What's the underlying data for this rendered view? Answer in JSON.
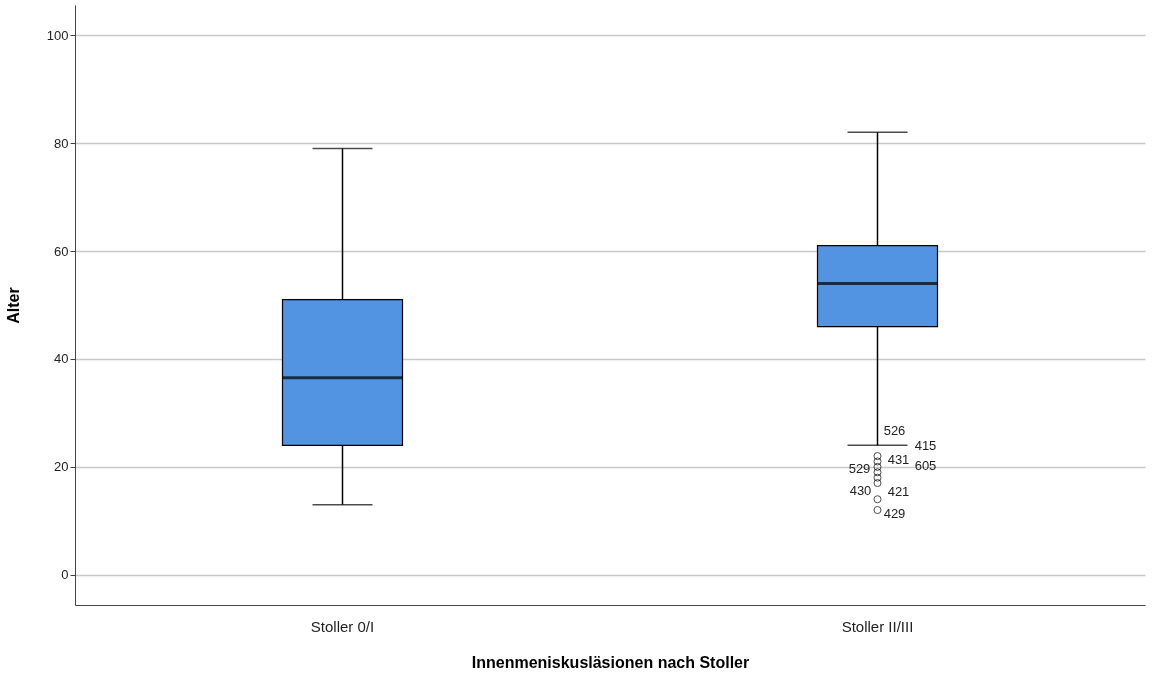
{
  "chart_data": {
    "type": "box",
    "xlabel": "Innenmeniskusläsionen nach Stoller",
    "ylabel": "Alter",
    "categories": [
      "Stoller 0/I",
      "Stoller II/III"
    ],
    "series": [
      {
        "color": "#5294e2",
        "boxes": [
          {
            "low": 13,
            "q1": 24,
            "median": 36.5,
            "q3": 51,
            "high": 79
          },
          {
            "low": 24,
            "q1": 46,
            "median": 54,
            "q3": 61,
            "high": 82,
            "outliers": [
              22,
              21,
              20,
              19,
              18,
              17,
              14,
              12
            ]
          }
        ]
      }
    ],
    "ylim": [
      -5.6,
      105.6
    ],
    "yticks": [
      0,
      20,
      40,
      60,
      80,
      100
    ],
    "grid": "y",
    "annotations": [
      "526",
      "415",
      "431",
      "605",
      "529",
      "430",
      "421",
      "429"
    ]
  }
}
